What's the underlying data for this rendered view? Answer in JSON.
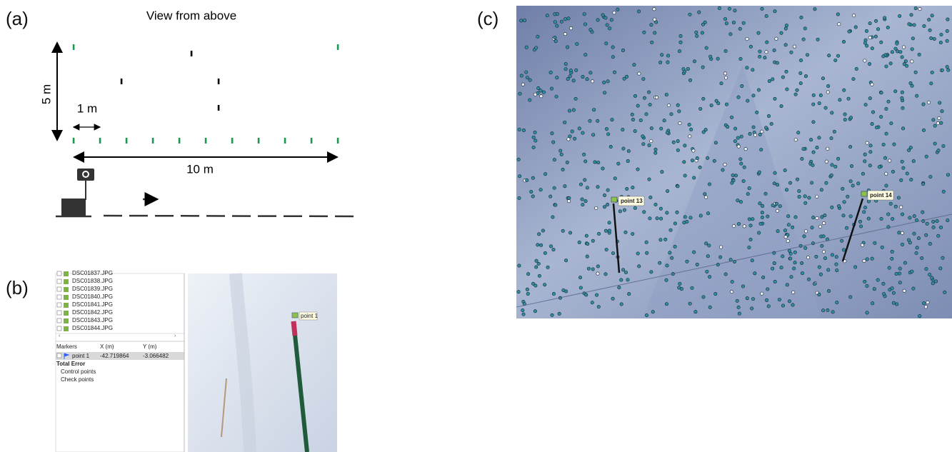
{
  "panel_a": {
    "label": "(a)",
    "title": "View from above",
    "height_label": "5 m",
    "spacing_label": "1 m",
    "length_label": "10 m"
  },
  "panel_b": {
    "label": "(b)",
    "files": [
      "DSC01837.JPG",
      "DSC01838.JPG",
      "DSC01839.JPG",
      "DSC01840.JPG",
      "DSC01841.JPG",
      "DSC01842.JPG",
      "DSC01843.JPG",
      "DSC01844.JPG"
    ],
    "table": {
      "headers": [
        "Markers",
        "X (m)",
        "Y (m)"
      ],
      "row": [
        "point 1",
        "-42.719864",
        "-3.066482"
      ],
      "total_error": "Total Error",
      "items": [
        "Control points",
        "Check points"
      ]
    },
    "photo_marker": "point 1"
  },
  "panel_c": {
    "label": "(c)",
    "markers": [
      "point 13",
      "point 14"
    ]
  }
}
